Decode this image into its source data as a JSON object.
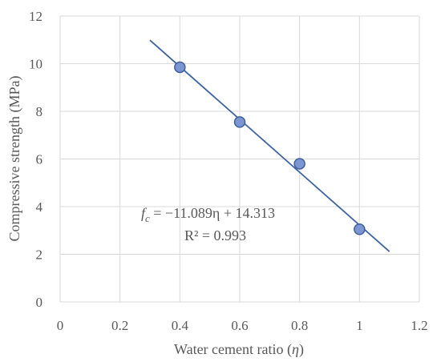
{
  "chart_data": {
    "type": "scatter",
    "xlabel_main": "Water cement ratio (",
    "xlabel_symbol": "η",
    "xlabel_close": ")",
    "ylabel": "Compressive strength  (MPa)",
    "xlim": [
      0,
      1.2
    ],
    "ylim": [
      0,
      12
    ],
    "xticks": [
      "0",
      "0.2",
      "0.4",
      "0.6",
      "0.8",
      "1",
      "1.2"
    ],
    "yticks": [
      "0",
      "2",
      "4",
      "6",
      "8",
      "10",
      "12"
    ],
    "grid": true,
    "series": [
      {
        "x": [
          0.4,
          0.6,
          0.8,
          1.0
        ],
        "y": [
          9.85,
          7.55,
          5.8,
          3.05
        ]
      }
    ],
    "trendline": {
      "slope": -11.089,
      "intercept": 14.313,
      "x_from": 0.3,
      "x_to": 1.1
    },
    "equation": {
      "lhs": "f",
      "lhs_sub": "c",
      "rhs": " = −11.089η + 14.313",
      "r2": "R² = 0.993"
    },
    "colors": {
      "marker_fill": "#7b96d0",
      "marker_stroke": "#3f5f9e",
      "line": "#3d64a8",
      "grid": "#d9d9d9",
      "text": "#595959"
    }
  }
}
